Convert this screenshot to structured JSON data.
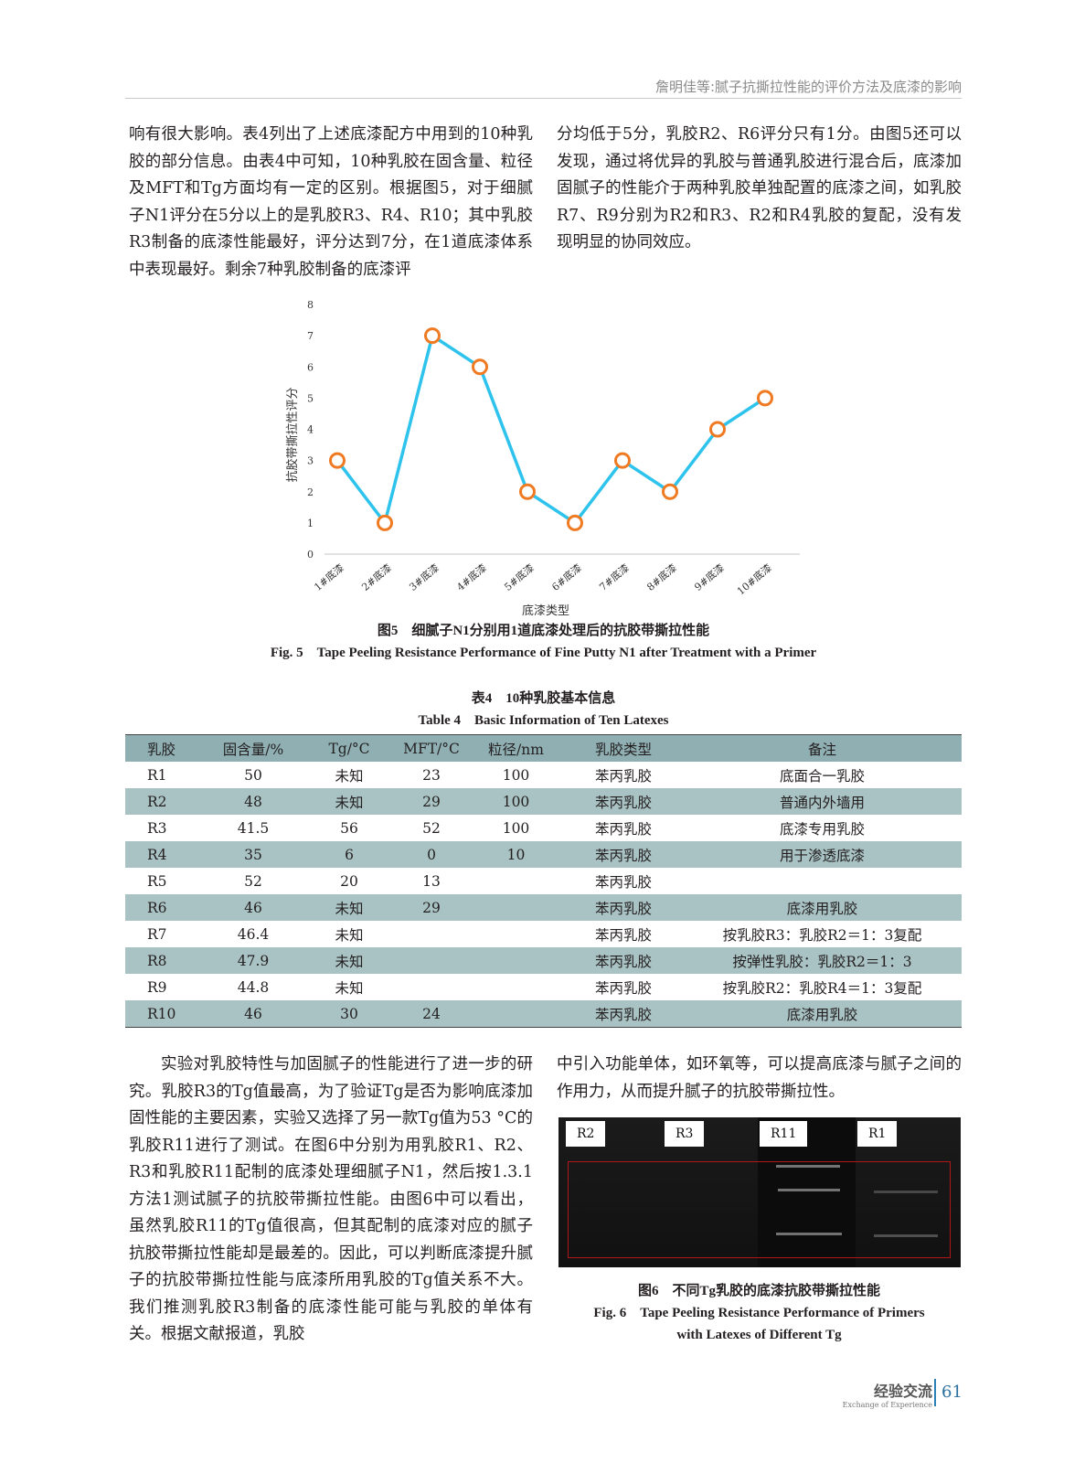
{
  "header": {
    "running_title": "詹明佳等:腻子抗撕拉性能的评价方法及底漆的影响"
  },
  "top": {
    "left_paragraph": "响有很大影响。表4列出了上述底漆配方中用到的10种乳胶的部分信息。由表4中可知，10种乳胶在固含量、粒径及MFT和Tg方面均有一定的区别。根据图5，对于细腻子N1评分在5分以上的是乳胶R3、R4、R10；其中乳胶R3制备的底漆性能最好，评分达到7分，在1道底漆体系中表现最好。剩余7种乳胶制备的底漆评",
    "right_paragraph": "分均低于5分，乳胶R2、R6评分只有1分。由图5还可以发现，通过将优异的乳胶与普通乳胶进行混合后，底漆加固腻子的性能介于两种乳胶单独配置的底漆之间，如乳胶R7、R9分别为R2和R3、R2和R4乳胶的复配，没有发现明显的协同效应。"
  },
  "chart_data": {
    "type": "line",
    "categories": [
      "1#底漆",
      "2#底漆",
      "3#底漆",
      "4#底漆",
      "5#底漆",
      "6#底漆",
      "7#底漆",
      "8#底漆",
      "9#底漆",
      "10#底漆"
    ],
    "values": [
      3,
      1,
      7,
      6,
      2,
      1,
      3,
      2,
      4,
      5
    ],
    "xlabel": "底漆类型",
    "ylabel": "抗胶带撕拉性评分",
    "ylim": [
      0,
      8
    ],
    "yticks": [
      "0",
      "1",
      "2",
      "3",
      "4",
      "5",
      "6",
      "7",
      "8"
    ],
    "grid": false,
    "line_color": "#2ec3ec",
    "marker_color": "#f07a22"
  },
  "fig5": {
    "caption_cn": "图5　细腻子N1分别用1道底漆处理后的抗胶带撕拉性能",
    "caption_en": "Fig. 5　Tape Peeling Resistance Performance of Fine Putty N1 after Treatment with a Primer"
  },
  "table4": {
    "caption_cn": "表4　10种乳胶基本信息",
    "caption_en": "Table 4　Basic Information of Ten Latexes",
    "headers": [
      "乳胶",
      "固含量/%",
      "Tg/°C",
      "MFT/°C",
      "粒径/nm",
      "乳胶类型",
      "备注"
    ],
    "rows": [
      [
        "R1",
        "50",
        "未知",
        "23",
        "100",
        "苯丙乳胶",
        "底面合一乳胶"
      ],
      [
        "R2",
        "48",
        "未知",
        "29",
        "100",
        "苯丙乳胶",
        "普通内外墙用"
      ],
      [
        "R3",
        "41.5",
        "56",
        "52",
        "100",
        "苯丙乳胶",
        "底漆专用乳胶"
      ],
      [
        "R4",
        "35",
        "6",
        "0",
        "10",
        "苯丙乳胶",
        "用于渗透底漆"
      ],
      [
        "R5",
        "52",
        "20",
        "13",
        "",
        "苯丙乳胶",
        ""
      ],
      [
        "R6",
        "46",
        "未知",
        "29",
        "",
        "苯丙乳胶",
        "底漆用乳胶"
      ],
      [
        "R7",
        "46.4",
        "未知",
        "",
        "",
        "苯丙乳胶",
        "按乳胶R3：乳胶R2＝1：3复配"
      ],
      [
        "R8",
        "47.9",
        "未知",
        "",
        "",
        "苯丙乳胶",
        "按弹性乳胶：乳胶R2＝1：3"
      ],
      [
        "R9",
        "44.8",
        "未知",
        "",
        "",
        "苯丙乳胶",
        "按乳胶R2：乳胶R4＝1：3复配"
      ],
      [
        "R10",
        "46",
        "30",
        "24",
        "",
        "苯丙乳胶",
        "底漆用乳胶"
      ]
    ]
  },
  "bottom": {
    "left_paragraph": "实验对乳胶特性与加固腻子的性能进行了进一步的研究。乳胶R3的Tg值最高，为了验证Tg是否为影响底漆加固性能的主要因素，实验又选择了另一款Tg值为53 °C的乳胶R11进行了测试。在图6中分别为用乳胶R1、R2、R3和乳胶R11配制的底漆处理细腻子N1，然后按1.3.1方法1测试腻子的抗胶带撕拉性能。由图6中可以看出，虽然乳胶R11的Tg值很高，但其配制的底漆对应的腻子抗胶带撕拉性能却是最差的。因此，可以判断底漆提升腻子的抗胶带撕拉性能与底漆所用乳胶的Tg值关系不大。我们推测乳胶R3制备的底漆性能可能与乳胶的单体有关。根据文献报道，乳胶",
    "right_paragraph": "中引入功能单体，如环氧等，可以提高底漆与腻子之间的作用力，从而提升腻子的抗胶带撕拉性。"
  },
  "fig6": {
    "labels": [
      "R2",
      "R3",
      "R11",
      "R1"
    ],
    "caption_cn": "图6　不同Tg乳胶的底漆抗胶带撕拉性能",
    "caption_en_1": "Fig. 6　Tape Peeling Resistance Performance of Primers",
    "caption_en_2": "with Latexes of Different Tg"
  },
  "footer": {
    "section_cn": "经验交流",
    "section_en": "Exchange of Experience",
    "page_number": "61"
  }
}
